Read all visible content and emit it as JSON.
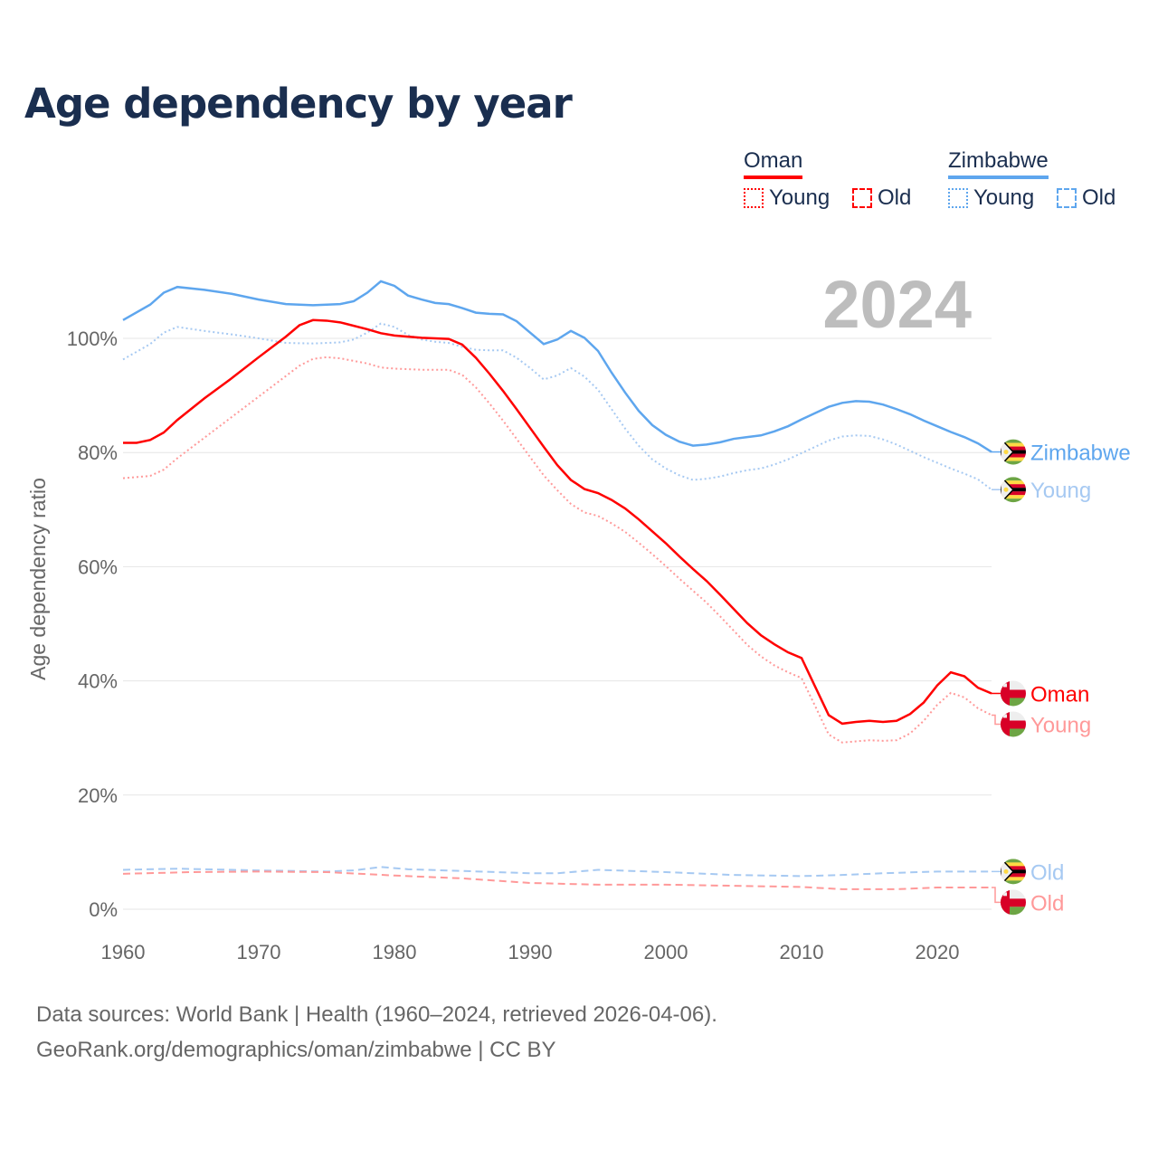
{
  "chart_data": {
    "type": "line",
    "title": "Age dependency by year",
    "ylabel": "Age dependency ratio",
    "xlabel": "",
    "xlim": [
      1960,
      2024
    ],
    "ylim": [
      0,
      110
    ],
    "x_ticks": [
      "1960",
      "1970",
      "1980",
      "1990",
      "2000",
      "2010",
      "2020"
    ],
    "y_ticks": [
      "0%",
      "20%",
      "40%",
      "60%",
      "80%",
      "100%"
    ],
    "grid": true,
    "year_label": "2024",
    "legend": {
      "placement": "top-right",
      "groups": [
        {
          "country": "Oman",
          "color": "#ff0000",
          "items": [
            "Young",
            "Old"
          ]
        },
        {
          "country": "Zimbabwe",
          "color": "#5ea6ee",
          "items": [
            "Young",
            "Old"
          ]
        }
      ]
    },
    "series": [
      {
        "name": "Zimbabwe",
        "end_label": "Zimbabwe",
        "flag": "zimbabwe",
        "color": "#5ea6ee",
        "dash": "solid",
        "points": [
          [
            1960,
            103.2
          ],
          [
            1962,
            105.9
          ],
          [
            1963,
            108
          ],
          [
            1964,
            109
          ],
          [
            1966,
            108.5
          ],
          [
            1968,
            107.8
          ],
          [
            1970,
            106.8
          ],
          [
            1972,
            106
          ],
          [
            1974,
            105.8
          ],
          [
            1976,
            106
          ],
          [
            1977,
            106.5
          ],
          [
            1978,
            108
          ],
          [
            1979,
            110
          ],
          [
            1980,
            109.2
          ],
          [
            1981,
            107.5
          ],
          [
            1982,
            106.8
          ],
          [
            1983,
            106.2
          ],
          [
            1984,
            106
          ],
          [
            1985,
            105.3
          ],
          [
            1986,
            104.5
          ],
          [
            1987,
            104.3
          ],
          [
            1988,
            104.2
          ],
          [
            1989,
            103
          ],
          [
            1990,
            101
          ],
          [
            1991,
            99
          ],
          [
            1992,
            99.8
          ],
          [
            1993,
            101.3
          ],
          [
            1994,
            100.1
          ],
          [
            1995,
            97.8
          ],
          [
            1996,
            94
          ],
          [
            1997,
            90.5
          ],
          [
            1998,
            87.3
          ],
          [
            1999,
            84.8
          ],
          [
            2000,
            83.1
          ],
          [
            2001,
            81.9
          ],
          [
            2002,
            81.2
          ],
          [
            2003,
            81.4
          ],
          [
            2004,
            81.8
          ],
          [
            2005,
            82.4
          ],
          [
            2006,
            82.7
          ],
          [
            2007,
            83
          ],
          [
            2008,
            83.7
          ],
          [
            2009,
            84.6
          ],
          [
            2010,
            85.8
          ],
          [
            2011,
            86.9
          ],
          [
            2012,
            88
          ],
          [
            2013,
            88.7
          ],
          [
            2014,
            89
          ],
          [
            2015,
            88.9
          ],
          [
            2016,
            88.4
          ],
          [
            2017,
            87.6
          ],
          [
            2018,
            86.7
          ],
          [
            2019,
            85.6
          ],
          [
            2020,
            84.6
          ],
          [
            2021,
            83.6
          ],
          [
            2022,
            82.7
          ],
          [
            2023,
            81.6
          ],
          [
            2024,
            80.1
          ]
        ]
      },
      {
        "name": "Zimbabwe Young",
        "end_label": "Young",
        "flag": "zimbabwe",
        "color": "#a6c9f2",
        "dash": "dotted",
        "points": [
          [
            1960,
            96.3
          ],
          [
            1962,
            99
          ],
          [
            1963,
            101
          ],
          [
            1964,
            102
          ],
          [
            1966,
            101.3
          ],
          [
            1968,
            100.7
          ],
          [
            1970,
            100
          ],
          [
            1972,
            99.2
          ],
          [
            1974,
            99.1
          ],
          [
            1976,
            99.3
          ],
          [
            1977,
            99.8
          ],
          [
            1978,
            101
          ],
          [
            1979,
            102.6
          ],
          [
            1980,
            102
          ],
          [
            1981,
            100.6
          ],
          [
            1982,
            99.8
          ],
          [
            1983,
            99.4
          ],
          [
            1984,
            99.2
          ],
          [
            1985,
            98.5
          ],
          [
            1986,
            98
          ],
          [
            1987,
            97.9
          ],
          [
            1988,
            97.9
          ],
          [
            1989,
            96.6
          ],
          [
            1990,
            94.8
          ],
          [
            1991,
            92.8
          ],
          [
            1992,
            93.5
          ],
          [
            1993,
            94.8
          ],
          [
            1994,
            93.3
          ],
          [
            1995,
            91
          ],
          [
            1996,
            87.6
          ],
          [
            1997,
            84.2
          ],
          [
            1998,
            81.2
          ],
          [
            1999,
            78.8
          ],
          [
            2000,
            77.2
          ],
          [
            2001,
            76
          ],
          [
            2002,
            75.2
          ],
          [
            2003,
            75.4
          ],
          [
            2004,
            75.8
          ],
          [
            2005,
            76.4
          ],
          [
            2006,
            76.9
          ],
          [
            2007,
            77.2
          ],
          [
            2008,
            77.9
          ],
          [
            2009,
            78.8
          ],
          [
            2010,
            79.9
          ],
          [
            2011,
            81
          ],
          [
            2012,
            82.1
          ],
          [
            2013,
            82.8
          ],
          [
            2014,
            83
          ],
          [
            2015,
            82.9
          ],
          [
            2016,
            82.3
          ],
          [
            2017,
            81.4
          ],
          [
            2018,
            80.3
          ],
          [
            2019,
            79.2
          ],
          [
            2020,
            78.2
          ],
          [
            2021,
            77.2
          ],
          [
            2022,
            76.3
          ],
          [
            2023,
            75.3
          ],
          [
            2024,
            73.5
          ]
        ]
      },
      {
        "name": "Oman",
        "end_label": "Oman",
        "flag": "oman",
        "color": "#ff0000",
        "dash": "solid",
        "points": [
          [
            1960,
            81.7
          ],
          [
            1961,
            81.7
          ],
          [
            1962,
            82.2
          ],
          [
            1963,
            83.5
          ],
          [
            1964,
            85.7
          ],
          [
            1966,
            89.5
          ],
          [
            1968,
            93
          ],
          [
            1970,
            96.7
          ],
          [
            1972,
            100.3
          ],
          [
            1973,
            102.3
          ],
          [
            1974,
            103.2
          ],
          [
            1975,
            103.1
          ],
          [
            1976,
            102.8
          ],
          [
            1978,
            101.6
          ],
          [
            1979,
            100.9
          ],
          [
            1980,
            100.5
          ],
          [
            1982,
            100.1
          ],
          [
            1984,
            99.9
          ],
          [
            1985,
            98.9
          ],
          [
            1986,
            96.6
          ],
          [
            1987,
            93.8
          ],
          [
            1988,
            90.8
          ],
          [
            1989,
            87.6
          ],
          [
            1990,
            84.3
          ],
          [
            1991,
            81
          ],
          [
            1992,
            77.8
          ],
          [
            1993,
            75.2
          ],
          [
            1994,
            73.6
          ],
          [
            1995,
            72.9
          ],
          [
            1996,
            71.7
          ],
          [
            1997,
            70.2
          ],
          [
            1998,
            68.3
          ],
          [
            1999,
            66.2
          ],
          [
            2000,
            64.1
          ],
          [
            2001,
            61.8
          ],
          [
            2002,
            59.6
          ],
          [
            2003,
            57.5
          ],
          [
            2004,
            55.1
          ],
          [
            2005,
            52.6
          ],
          [
            2006,
            50.1
          ],
          [
            2007,
            48
          ],
          [
            2008,
            46.4
          ],
          [
            2009,
            45
          ],
          [
            2010,
            44
          ],
          [
            2011,
            39
          ],
          [
            2012,
            34
          ],
          [
            2013,
            32.5
          ],
          [
            2014,
            32.8
          ],
          [
            2015,
            33
          ],
          [
            2016,
            32.8
          ],
          [
            2017,
            33
          ],
          [
            2018,
            34.2
          ],
          [
            2019,
            36.2
          ],
          [
            2020,
            39.2
          ],
          [
            2021,
            41.5
          ],
          [
            2022,
            40.8
          ],
          [
            2023,
            38.8
          ],
          [
            2024,
            37.8
          ]
        ]
      },
      {
        "name": "Oman Young",
        "end_label": "Young",
        "flag": "oman",
        "color": "#ff9999",
        "dash": "dotted",
        "points": [
          [
            1960,
            75.5
          ],
          [
            1962,
            75.9
          ],
          [
            1963,
            77
          ],
          [
            1964,
            79
          ],
          [
            1966,
            82.6
          ],
          [
            1968,
            86.2
          ],
          [
            1970,
            89.8
          ],
          [
            1972,
            93.4
          ],
          [
            1973,
            95.2
          ],
          [
            1974,
            96.4
          ],
          [
            1975,
            96.7
          ],
          [
            1976,
            96.5
          ],
          [
            1978,
            95.6
          ],
          [
            1979,
            94.9
          ],
          [
            1980,
            94.7
          ],
          [
            1982,
            94.5
          ],
          [
            1984,
            94.5
          ],
          [
            1985,
            93.6
          ],
          [
            1986,
            91.4
          ],
          [
            1987,
            88.6
          ],
          [
            1988,
            85.6
          ],
          [
            1989,
            82.4
          ],
          [
            1990,
            79.2
          ],
          [
            1991,
            76
          ],
          [
            1992,
            73.4
          ],
          [
            1993,
            71
          ],
          [
            1994,
            69.5
          ],
          [
            1995,
            68.9
          ],
          [
            1996,
            67.6
          ],
          [
            1997,
            66.1
          ],
          [
            1998,
            64.2
          ],
          [
            1999,
            62.2
          ],
          [
            2000,
            60.1
          ],
          [
            2001,
            57.9
          ],
          [
            2002,
            55.8
          ],
          [
            2003,
            53.7
          ],
          [
            2004,
            51.3
          ],
          [
            2005,
            48.8
          ],
          [
            2006,
            46.3
          ],
          [
            2007,
            44.3
          ],
          [
            2008,
            42.7
          ],
          [
            2009,
            41.5
          ],
          [
            2010,
            40.5
          ],
          [
            2011,
            35.6
          ],
          [
            2012,
            30.6
          ],
          [
            2013,
            29.2
          ],
          [
            2014,
            29.4
          ],
          [
            2015,
            29.6
          ],
          [
            2016,
            29.5
          ],
          [
            2017,
            29.6
          ],
          [
            2018,
            30.8
          ],
          [
            2019,
            33
          ],
          [
            2020,
            35.8
          ],
          [
            2021,
            37.9
          ],
          [
            2022,
            37.1
          ],
          [
            2023,
            35.2
          ],
          [
            2024,
            34
          ]
        ]
      },
      {
        "name": "Zimbabwe Old",
        "end_label": "Old",
        "flag": "zimbabwe",
        "color": "#a6c9f2",
        "dash": "dashed",
        "points": [
          [
            1960,
            6.9
          ],
          [
            1964,
            7.1
          ],
          [
            1970,
            6.8
          ],
          [
            1975,
            6.6
          ],
          [
            1977,
            6.8
          ],
          [
            1979,
            7.4
          ],
          [
            1981,
            7
          ],
          [
            1985,
            6.7
          ],
          [
            1990,
            6.3
          ],
          [
            1992,
            6.3
          ],
          [
            1995,
            6.9
          ],
          [
            2000,
            6.5
          ],
          [
            2005,
            6
          ],
          [
            2010,
            5.8
          ],
          [
            2013,
            6
          ],
          [
            2016,
            6.3
          ],
          [
            2020,
            6.6
          ],
          [
            2024,
            6.6
          ]
        ]
      },
      {
        "name": "Oman Old",
        "end_label": "Old",
        "flag": "oman",
        "color": "#ff9999",
        "dash": "dashed",
        "points": [
          [
            1960,
            6.2
          ],
          [
            1965,
            6.5
          ],
          [
            1970,
            6.6
          ],
          [
            1975,
            6.5
          ],
          [
            1980,
            5.9
          ],
          [
            1985,
            5.4
          ],
          [
            1990,
            4.6
          ],
          [
            1995,
            4.3
          ],
          [
            2000,
            4.3
          ],
          [
            2005,
            4.1
          ],
          [
            2010,
            3.9
          ],
          [
            2013,
            3.5
          ],
          [
            2017,
            3.5
          ],
          [
            2020,
            3.8
          ],
          [
            2024,
            3.8
          ]
        ]
      }
    ]
  },
  "footer": {
    "line1": "Data sources: World Bank | Health (1960–2024, retrieved 2026-04-06).",
    "line2": "GeoRank.org/demographics/oman/zimbabwe | CC BY"
  }
}
